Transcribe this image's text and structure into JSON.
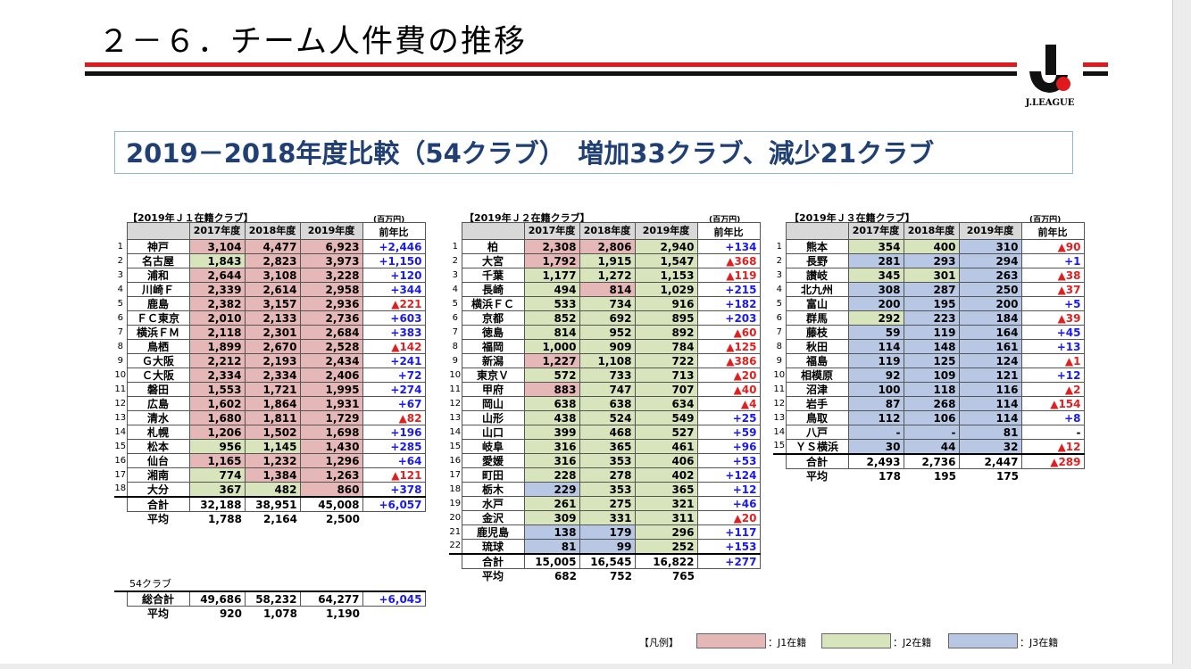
{
  "title": "２－６．チーム人件費の推移",
  "logo_text": "J.LEAGUE",
  "banner": "2019－2018年度比較（54クラブ）　増加33クラブ、減少21クラブ",
  "unit": "(百万円)",
  "headers": [
    "2017年度",
    "2018年度",
    "2019年度",
    "前年比"
  ],
  "legend": {
    "label": "【凡例】",
    "j1": "：J1在籍",
    "j2": "：J2在籍",
    "j3": "：J3在籍"
  },
  "colors": {
    "j1": "#e5b8b7",
    "j2": "#d8e4bc",
    "j3": "#b8c8e4",
    "increase": "#1a1aee",
    "decrease": "#e02020",
    "banner_text": "#1f3f75"
  },
  "j1": {
    "caption": "【2019年Ｊ１在籍クラブ】",
    "rows": [
      {
        "no": "1",
        "name": "神戸",
        "v": [
          "3,104",
          "4,477",
          "6,923"
        ],
        "d": "+2,446",
        "c": [
          "j1",
          "j1",
          "j1"
        ]
      },
      {
        "no": "2",
        "name": "名古屋",
        "v": [
          "1,843",
          "2,823",
          "3,973"
        ],
        "d": "+1,150",
        "c": [
          "j2",
          "j1",
          "j1"
        ]
      },
      {
        "no": "3",
        "name": "浦和",
        "v": [
          "2,644",
          "3,108",
          "3,228"
        ],
        "d": "+120",
        "c": [
          "j1",
          "j1",
          "j1"
        ]
      },
      {
        "no": "4",
        "name": "川崎Ｆ",
        "v": [
          "2,339",
          "2,614",
          "2,958"
        ],
        "d": "+344",
        "c": [
          "j1",
          "j1",
          "j1"
        ]
      },
      {
        "no": "5",
        "name": "鹿島",
        "v": [
          "2,382",
          "3,157",
          "2,936"
        ],
        "d": "▲221",
        "c": [
          "j1",
          "j1",
          "j1"
        ]
      },
      {
        "no": "6",
        "name": "ＦＣ東京",
        "v": [
          "2,010",
          "2,133",
          "2,736"
        ],
        "d": "+603",
        "c": [
          "j1",
          "j1",
          "j1"
        ]
      },
      {
        "no": "7",
        "name": "横浜ＦＭ",
        "v": [
          "2,118",
          "2,301",
          "2,684"
        ],
        "d": "+383",
        "c": [
          "j1",
          "j1",
          "j1"
        ]
      },
      {
        "no": "8",
        "name": "鳥栖",
        "v": [
          "1,899",
          "2,670",
          "2,528"
        ],
        "d": "▲142",
        "c": [
          "j1",
          "j1",
          "j1"
        ]
      },
      {
        "no": "9",
        "name": "Ｇ大阪",
        "v": [
          "2,212",
          "2,193",
          "2,434"
        ],
        "d": "+241",
        "c": [
          "j1",
          "j1",
          "j1"
        ]
      },
      {
        "no": "10",
        "name": "Ｃ大阪",
        "v": [
          "2,334",
          "2,334",
          "2,406"
        ],
        "d": "+72",
        "c": [
          "j1",
          "j1",
          "j1"
        ]
      },
      {
        "no": "11",
        "name": "磐田",
        "v": [
          "1,553",
          "1,721",
          "1,995"
        ],
        "d": "+274",
        "c": [
          "j1",
          "j1",
          "j1"
        ]
      },
      {
        "no": "12",
        "name": "広島",
        "v": [
          "1,602",
          "1,864",
          "1,931"
        ],
        "d": "+67",
        "c": [
          "j1",
          "j1",
          "j1"
        ]
      },
      {
        "no": "13",
        "name": "清水",
        "v": [
          "1,680",
          "1,811",
          "1,729"
        ],
        "d": "▲82",
        "c": [
          "j1",
          "j1",
          "j1"
        ]
      },
      {
        "no": "14",
        "name": "札幌",
        "v": [
          "1,206",
          "1,502",
          "1,698"
        ],
        "d": "+196",
        "c": [
          "j1",
          "j1",
          "j1"
        ]
      },
      {
        "no": "15",
        "name": "松本",
        "v": [
          "956",
          "1,145",
          "1,430"
        ],
        "d": "+285",
        "c": [
          "j2",
          "j2",
          "j1"
        ]
      },
      {
        "no": "16",
        "name": "仙台",
        "v": [
          "1,165",
          "1,232",
          "1,296"
        ],
        "d": "+64",
        "c": [
          "j1",
          "j1",
          "j1"
        ]
      },
      {
        "no": "17",
        "name": "湘南",
        "v": [
          "774",
          "1,384",
          "1,263"
        ],
        "d": "▲121",
        "c": [
          "j2",
          "j1",
          "j1"
        ]
      },
      {
        "no": "18",
        "name": "大分",
        "v": [
          "367",
          "482",
          "860"
        ],
        "d": "+378",
        "c": [
          "j2",
          "j2",
          "j1"
        ]
      }
    ],
    "total": {
      "label": "合計",
      "v": [
        "32,188",
        "38,951",
        "45,008"
      ],
      "d": "+6,057"
    },
    "avg": {
      "label": "平均",
      "v": [
        "1,788",
        "2,164",
        "2,500"
      ]
    }
  },
  "clubs54": {
    "label": "54クラブ",
    "total": {
      "label": "総合計",
      "v": [
        "49,686",
        "58,232",
        "64,277"
      ],
      "d": "+6,045"
    },
    "avg": {
      "label": "平均",
      "v": [
        "920",
        "1,078",
        "1,190"
      ]
    }
  },
  "j2": {
    "caption": "【2019年Ｊ２在籍クラブ】",
    "rows": [
      {
        "no": "1",
        "name": "柏",
        "v": [
          "2,308",
          "2,806",
          "2,940"
        ],
        "d": "+134",
        "c": [
          "j1",
          "j1",
          "j2"
        ]
      },
      {
        "no": "2",
        "name": "大宮",
        "v": [
          "1,792",
          "1,915",
          "1,547"
        ],
        "d": "▲368",
        "c": [
          "j1",
          "j2",
          "j2"
        ]
      },
      {
        "no": "3",
        "name": "千葉",
        "v": [
          "1,177",
          "1,272",
          "1,153"
        ],
        "d": "▲119",
        "c": [
          "j2",
          "j2",
          "j2"
        ]
      },
      {
        "no": "4",
        "name": "長崎",
        "v": [
          "494",
          "814",
          "1,029"
        ],
        "d": "+215",
        "c": [
          "j2",
          "j1",
          "j2"
        ]
      },
      {
        "no": "5",
        "name": "横浜ＦＣ",
        "v": [
          "533",
          "734",
          "916"
        ],
        "d": "+182",
        "c": [
          "j2",
          "j2",
          "j2"
        ]
      },
      {
        "no": "6",
        "name": "京都",
        "v": [
          "852",
          "692",
          "895"
        ],
        "d": "+203",
        "c": [
          "j2",
          "j2",
          "j2"
        ]
      },
      {
        "no": "7",
        "name": "徳島",
        "v": [
          "814",
          "952",
          "892"
        ],
        "d": "▲60",
        "c": [
          "j2",
          "j2",
          "j2"
        ]
      },
      {
        "no": "8",
        "name": "福岡",
        "v": [
          "1,000",
          "909",
          "784"
        ],
        "d": "▲125",
        "c": [
          "j2",
          "j2",
          "j2"
        ]
      },
      {
        "no": "9",
        "name": "新潟",
        "v": [
          "1,227",
          "1,108",
          "722"
        ],
        "d": "▲386",
        "c": [
          "j1",
          "j2",
          "j2"
        ]
      },
      {
        "no": "10",
        "name": "東京Ｖ",
        "v": [
          "572",
          "733",
          "713"
        ],
        "d": "▲20",
        "c": [
          "j2",
          "j2",
          "j2"
        ]
      },
      {
        "no": "11",
        "name": "甲府",
        "v": [
          "883",
          "747",
          "707"
        ],
        "d": "▲40",
        "c": [
          "j1",
          "j2",
          "j2"
        ]
      },
      {
        "no": "12",
        "name": "岡山",
        "v": [
          "638",
          "638",
          "634"
        ],
        "d": "▲4",
        "c": [
          "j2",
          "j2",
          "j2"
        ]
      },
      {
        "no": "13",
        "name": "山形",
        "v": [
          "438",
          "524",
          "549"
        ],
        "d": "+25",
        "c": [
          "j2",
          "j2",
          "j2"
        ]
      },
      {
        "no": "14",
        "name": "山口",
        "v": [
          "399",
          "468",
          "527"
        ],
        "d": "+59",
        "c": [
          "j2",
          "j2",
          "j2"
        ]
      },
      {
        "no": "15",
        "name": "岐阜",
        "v": [
          "316",
          "365",
          "461"
        ],
        "d": "+96",
        "c": [
          "j2",
          "j2",
          "j2"
        ]
      },
      {
        "no": "16",
        "name": "愛媛",
        "v": [
          "316",
          "353",
          "406"
        ],
        "d": "+53",
        "c": [
          "j2",
          "j2",
          "j2"
        ]
      },
      {
        "no": "17",
        "name": "町田",
        "v": [
          "228",
          "278",
          "402"
        ],
        "d": "+124",
        "c": [
          "j2",
          "j2",
          "j2"
        ]
      },
      {
        "no": "18",
        "name": "栃木",
        "v": [
          "229",
          "353",
          "365"
        ],
        "d": "+12",
        "c": [
          "j3",
          "j2",
          "j2"
        ]
      },
      {
        "no": "19",
        "name": "水戸",
        "v": [
          "261",
          "275",
          "321"
        ],
        "d": "+46",
        "c": [
          "j2",
          "j2",
          "j2"
        ]
      },
      {
        "no": "20",
        "name": "金沢",
        "v": [
          "309",
          "331",
          "311"
        ],
        "d": "▲20",
        "c": [
          "j2",
          "j2",
          "j2"
        ]
      },
      {
        "no": "21",
        "name": "鹿児島",
        "v": [
          "138",
          "179",
          "296"
        ],
        "d": "+117",
        "c": [
          "j3",
          "j3",
          "j2"
        ]
      },
      {
        "no": "22",
        "name": "琉球",
        "v": [
          "81",
          "99",
          "252"
        ],
        "d": "+153",
        "c": [
          "j3",
          "j3",
          "j2"
        ]
      }
    ],
    "total": {
      "label": "合計",
      "v": [
        "15,005",
        "16,545",
        "16,822"
      ],
      "d": "+277"
    },
    "avg": {
      "label": "平均",
      "v": [
        "682",
        "752",
        "765"
      ]
    }
  },
  "j3": {
    "caption": "【2019年Ｊ３在籍クラブ】",
    "rows": [
      {
        "no": "1",
        "name": "熊本",
        "v": [
          "354",
          "400",
          "310"
        ],
        "d": "▲90",
        "c": [
          "j2",
          "j2",
          "j3"
        ]
      },
      {
        "no": "2",
        "name": "長野",
        "v": [
          "281",
          "293",
          "294"
        ],
        "d": "+1",
        "c": [
          "j3",
          "j3",
          "j3"
        ]
      },
      {
        "no": "3",
        "name": "讃岐",
        "v": [
          "345",
          "301",
          "263"
        ],
        "d": "▲38",
        "c": [
          "j2",
          "j2",
          "j3"
        ]
      },
      {
        "no": "4",
        "name": "北九州",
        "v": [
          "308",
          "287",
          "250"
        ],
        "d": "▲37",
        "c": [
          "j3",
          "j3",
          "j3"
        ]
      },
      {
        "no": "5",
        "name": "富山",
        "v": [
          "200",
          "195",
          "200"
        ],
        "d": "+5",
        "c": [
          "j3",
          "j3",
          "j3"
        ]
      },
      {
        "no": "6",
        "name": "群馬",
        "v": [
          "292",
          "223",
          "184"
        ],
        "d": "▲39",
        "c": [
          "j2",
          "j3",
          "j3"
        ]
      },
      {
        "no": "7",
        "name": "藤枝",
        "v": [
          "59",
          "119",
          "164"
        ],
        "d": "+45",
        "c": [
          "j3",
          "j3",
          "j3"
        ]
      },
      {
        "no": "8",
        "name": "秋田",
        "v": [
          "114",
          "148",
          "161"
        ],
        "d": "+13",
        "c": [
          "j3",
          "j3",
          "j3"
        ]
      },
      {
        "no": "9",
        "name": "福島",
        "v": [
          "119",
          "125",
          "124"
        ],
        "d": "▲1",
        "c": [
          "j3",
          "j3",
          "j3"
        ]
      },
      {
        "no": "10",
        "name": "相模原",
        "v": [
          "92",
          "109",
          "121"
        ],
        "d": "+12",
        "c": [
          "j3",
          "j3",
          "j3"
        ]
      },
      {
        "no": "11",
        "name": "沼津",
        "v": [
          "100",
          "118",
          "116"
        ],
        "d": "▲2",
        "c": [
          "j3",
          "j3",
          "j3"
        ]
      },
      {
        "no": "12",
        "name": "岩手",
        "v": [
          "87",
          "268",
          "114"
        ],
        "d": "▲154",
        "c": [
          "j3",
          "j3",
          "j3"
        ]
      },
      {
        "no": "13",
        "name": "鳥取",
        "v": [
          "112",
          "106",
          "114"
        ],
        "d": "+8",
        "c": [
          "j3",
          "j3",
          "j3"
        ]
      },
      {
        "no": "14",
        "name": "八戸",
        "v": [
          "-",
          "-",
          "81"
        ],
        "d": "-",
        "c": [
          "j3",
          "j3",
          "j3"
        ]
      },
      {
        "no": "15",
        "name": "ＹＳ横浜",
        "v": [
          "30",
          "44",
          "32"
        ],
        "d": "▲12",
        "c": [
          "j3",
          "j3",
          "j3"
        ]
      }
    ],
    "total": {
      "label": "合計",
      "v": [
        "2,493",
        "2,736",
        "2,447"
      ],
      "d": "▲289"
    },
    "avg": {
      "label": "平均",
      "v": [
        "178",
        "195",
        "175"
      ]
    }
  }
}
